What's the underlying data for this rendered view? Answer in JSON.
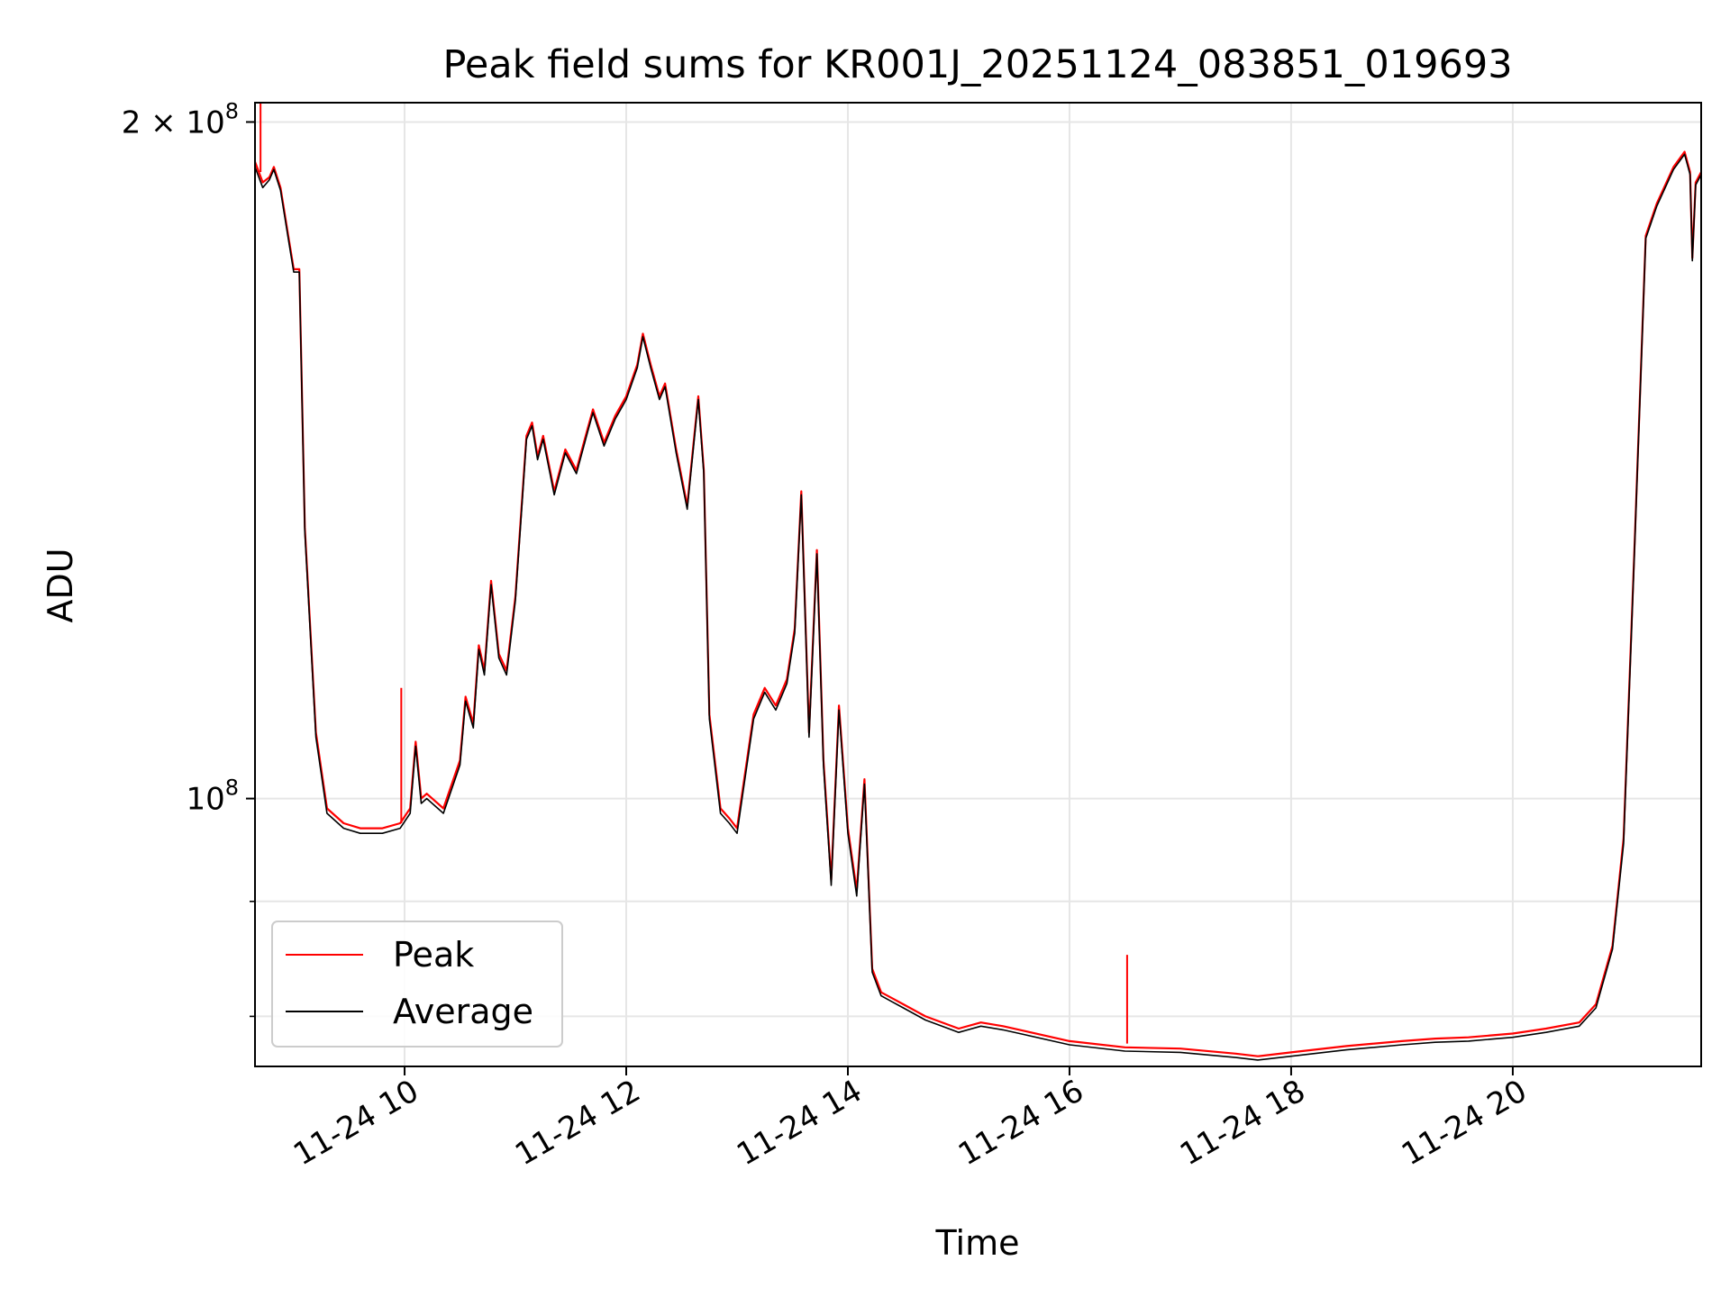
{
  "chart_data": {
    "type": "line",
    "title": "Peak field sums for KR001J_20251124_083851_019693",
    "xlabel": "Time",
    "ylabel": "ADU",
    "yscale": "log",
    "grid": true,
    "legend_position": "lower-left",
    "xlim": [
      8.65,
      21.7
    ],
    "ylim": [
      76000000,
      204000000
    ],
    "x_ticks": [
      {
        "value": 10,
        "label": "11-24 10"
      },
      {
        "value": 12,
        "label": "11-24 12"
      },
      {
        "value": 14,
        "label": "11-24 14"
      },
      {
        "value": 16,
        "label": "11-24 16"
      },
      {
        "value": 18,
        "label": "11-24 18"
      },
      {
        "value": 20,
        "label": "11-24 20"
      }
    ],
    "y_major_ticks": [
      {
        "value": 100000000,
        "base": "10",
        "exp": "8"
      },
      {
        "value": 200000000,
        "mantissa": "2",
        "base": "10",
        "exp": "8"
      }
    ],
    "y_minor_ticks": [
      80000000,
      90000000
    ],
    "x": [
      8.65,
      8.72,
      8.78,
      8.82,
      8.88,
      8.95,
      9.0,
      9.05,
      9.1,
      9.2,
      9.3,
      9.45,
      9.6,
      9.8,
      9.96,
      10.05,
      10.1,
      10.15,
      10.2,
      10.35,
      10.5,
      10.55,
      10.62,
      10.67,
      10.72,
      10.78,
      10.85,
      10.92,
      11.0,
      11.1,
      11.15,
      11.2,
      11.25,
      11.35,
      11.45,
      11.55,
      11.65,
      11.7,
      11.8,
      11.9,
      12.0,
      12.1,
      12.15,
      12.22,
      12.3,
      12.35,
      12.45,
      12.55,
      12.65,
      12.7,
      12.75,
      12.85,
      12.93,
      13.0,
      13.15,
      13.25,
      13.35,
      13.45,
      13.52,
      13.58,
      13.65,
      13.72,
      13.78,
      13.85,
      13.92,
      14.0,
      14.08,
      14.15,
      14.22,
      14.3,
      14.4,
      14.5,
      14.7,
      15.0,
      15.2,
      15.4,
      15.6,
      16.0,
      16.5,
      17.0,
      17.5,
      17.7,
      18.0,
      18.5,
      19.0,
      19.3,
      19.6,
      20.0,
      20.3,
      20.6,
      20.75,
      20.9,
      21.0,
      21.1,
      21.2,
      21.3,
      21.45,
      21.55,
      21.6,
      21.62,
      21.65,
      21.7
    ],
    "series": [
      {
        "name": "Peak",
        "color": "#ff0000",
        "values": [
          192000000,
          188000000,
          189000000,
          191000000,
          187000000,
          178000000,
          172000000,
          172000000,
          132000000,
          107000000,
          99000000,
          97500000,
          97000000,
          97000000,
          97500000,
          99000000,
          106000000,
          100000000,
          100500000,
          99000000,
          104000000,
          111000000,
          108000000,
          117000000,
          114000000,
          125000000,
          116000000,
          114000000,
          123000000,
          145000000,
          147000000,
          142000000,
          145000000,
          137000000,
          143000000,
          140000000,
          146000000,
          149000000,
          144000000,
          148000000,
          151000000,
          156000000,
          161000000,
          156000000,
          151000000,
          153000000,
          143000000,
          135000000,
          151000000,
          140000000,
          109000000,
          99000000,
          98000000,
          97000000,
          109000000,
          112000000,
          110000000,
          113000000,
          119000000,
          137000000,
          107000000,
          129000000,
          104000000,
          92000000,
          110000000,
          97000000,
          91000000,
          102000000,
          84000000,
          82000000,
          81500000,
          81000000,
          80000000,
          79000000,
          79500000,
          79200000,
          78800000,
          78000000,
          77500000,
          77400000,
          77000000,
          76800000,
          77100000,
          77600000,
          78000000,
          78200000,
          78300000,
          78600000,
          79000000,
          79500000,
          81000000,
          86000000,
          96000000,
          130000000,
          178000000,
          184000000,
          191000000,
          194000000,
          190000000,
          174000000,
          188000000,
          190000000
        ]
      },
      {
        "name": "Average",
        "color": "#000000",
        "values": [
          191000000,
          187000000,
          188500000,
          190500000,
          186500000,
          177500000,
          171500000,
          171500000,
          131500000,
          106500000,
          98500000,
          97000000,
          96500000,
          96500000,
          97000000,
          98500000,
          105500000,
          99500000,
          100000000,
          98500000,
          103500000,
          110500000,
          107500000,
          116500000,
          113500000,
          124500000,
          115500000,
          113500000,
          122500000,
          144500000,
          146500000,
          141500000,
          144500000,
          136500000,
          142500000,
          139500000,
          145500000,
          148500000,
          143500000,
          147500000,
          150500000,
          155500000,
          160500000,
          155500000,
          150500000,
          152500000,
          142500000,
          134500000,
          150500000,
          139500000,
          108500000,
          98500000,
          97500000,
          96500000,
          108500000,
          111500000,
          109500000,
          112500000,
          118500000,
          136500000,
          106500000,
          128500000,
          103500000,
          91500000,
          109500000,
          96500000,
          90500000,
          101500000,
          83700000,
          81700000,
          81200000,
          80700000,
          79700000,
          78700000,
          79200000,
          78900000,
          78500000,
          77700000,
          77200000,
          77100000,
          76700000,
          76500000,
          76800000,
          77300000,
          77700000,
          77900000,
          78000000,
          78300000,
          78700000,
          79200000,
          80700000,
          85700000,
          95500000,
          129500000,
          177500000,
          183500000,
          190500000,
          193500000,
          189500000,
          173500000,
          187500000,
          189500000
        ]
      }
    ],
    "spikes": [
      {
        "series": "Peak",
        "x": 8.7,
        "from": 190000000,
        "to": 204000000
      },
      {
        "series": "Peak",
        "x": 9.97,
        "from": 97500000,
        "to": 112000000
      },
      {
        "series": "Peak",
        "x": 16.52,
        "from": 77800000,
        "to": 85200000
      }
    ]
  }
}
